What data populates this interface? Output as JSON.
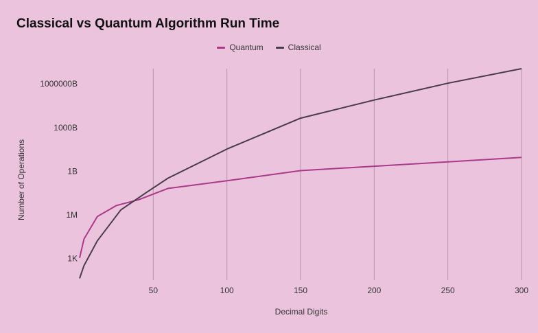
{
  "chart_data": {
    "type": "line",
    "title": "Classical vs Quantum Algorithm Run Time",
    "xlabel": "Decimal Digits",
    "ylabel": "Number of Operations",
    "xlim": [
      0,
      300
    ],
    "x_ticks": [
      50,
      100,
      150,
      200,
      250,
      300
    ],
    "y_scale": "log",
    "ylim": [
      30.0,
      1e+16
    ],
    "y_ticks": [
      {
        "label": "1K",
        "value": 1000
      },
      {
        "label": "1M",
        "value": 1000000
      },
      {
        "label": "1B",
        "value": 1000000000
      },
      {
        "label": "1000B",
        "value": 1000000000000
      },
      {
        "label": "1000000B",
        "value": 1000000000000000
      }
    ],
    "grid": "vertical",
    "legend_position": "top-center",
    "series": [
      {
        "name": "Quantum",
        "color": "#a93a8a",
        "x": [
          0,
          3,
          12,
          25,
          40,
          60,
          100,
          150,
          200,
          250,
          300
        ],
        "y": [
          1000,
          20000,
          700000,
          4000000,
          10000000,
          60000000,
          200000000,
          1000000000,
          2000000000,
          4000000000,
          8000000000
        ]
      },
      {
        "name": "Classical",
        "color": "#4a3b4c",
        "x": [
          0,
          3,
          12,
          28,
          45,
          60,
          100,
          150,
          200,
          250,
          300
        ],
        "y": [
          40,
          300,
          15000,
          2000000,
          30000000,
          300000000,
          30000000000,
          4000000000000,
          70000000000000,
          1000000000000000,
          10000000000000000
        ]
      }
    ]
  }
}
